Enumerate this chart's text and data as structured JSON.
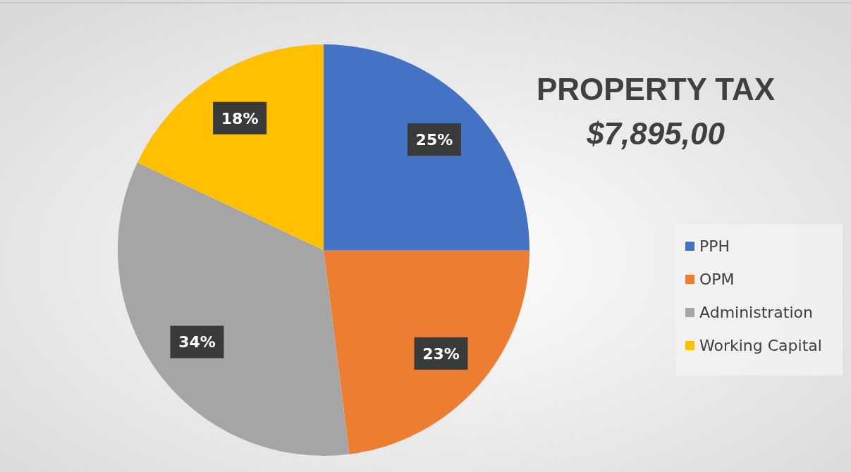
{
  "chart_data": {
    "type": "pie",
    "title": "PROPERTY TAX",
    "subtitle": "$7,895,00",
    "categories": [
      "PPH",
      "OPM",
      "Administration",
      "Working Capital"
    ],
    "values": [
      25,
      23,
      34,
      18
    ],
    "colors": [
      "#4472c4",
      "#ed7d31",
      "#a5a5a5",
      "#ffc000"
    ],
    "value_labels": [
      "25%",
      "23%",
      "34%",
      "18%"
    ],
    "legend": "right"
  }
}
